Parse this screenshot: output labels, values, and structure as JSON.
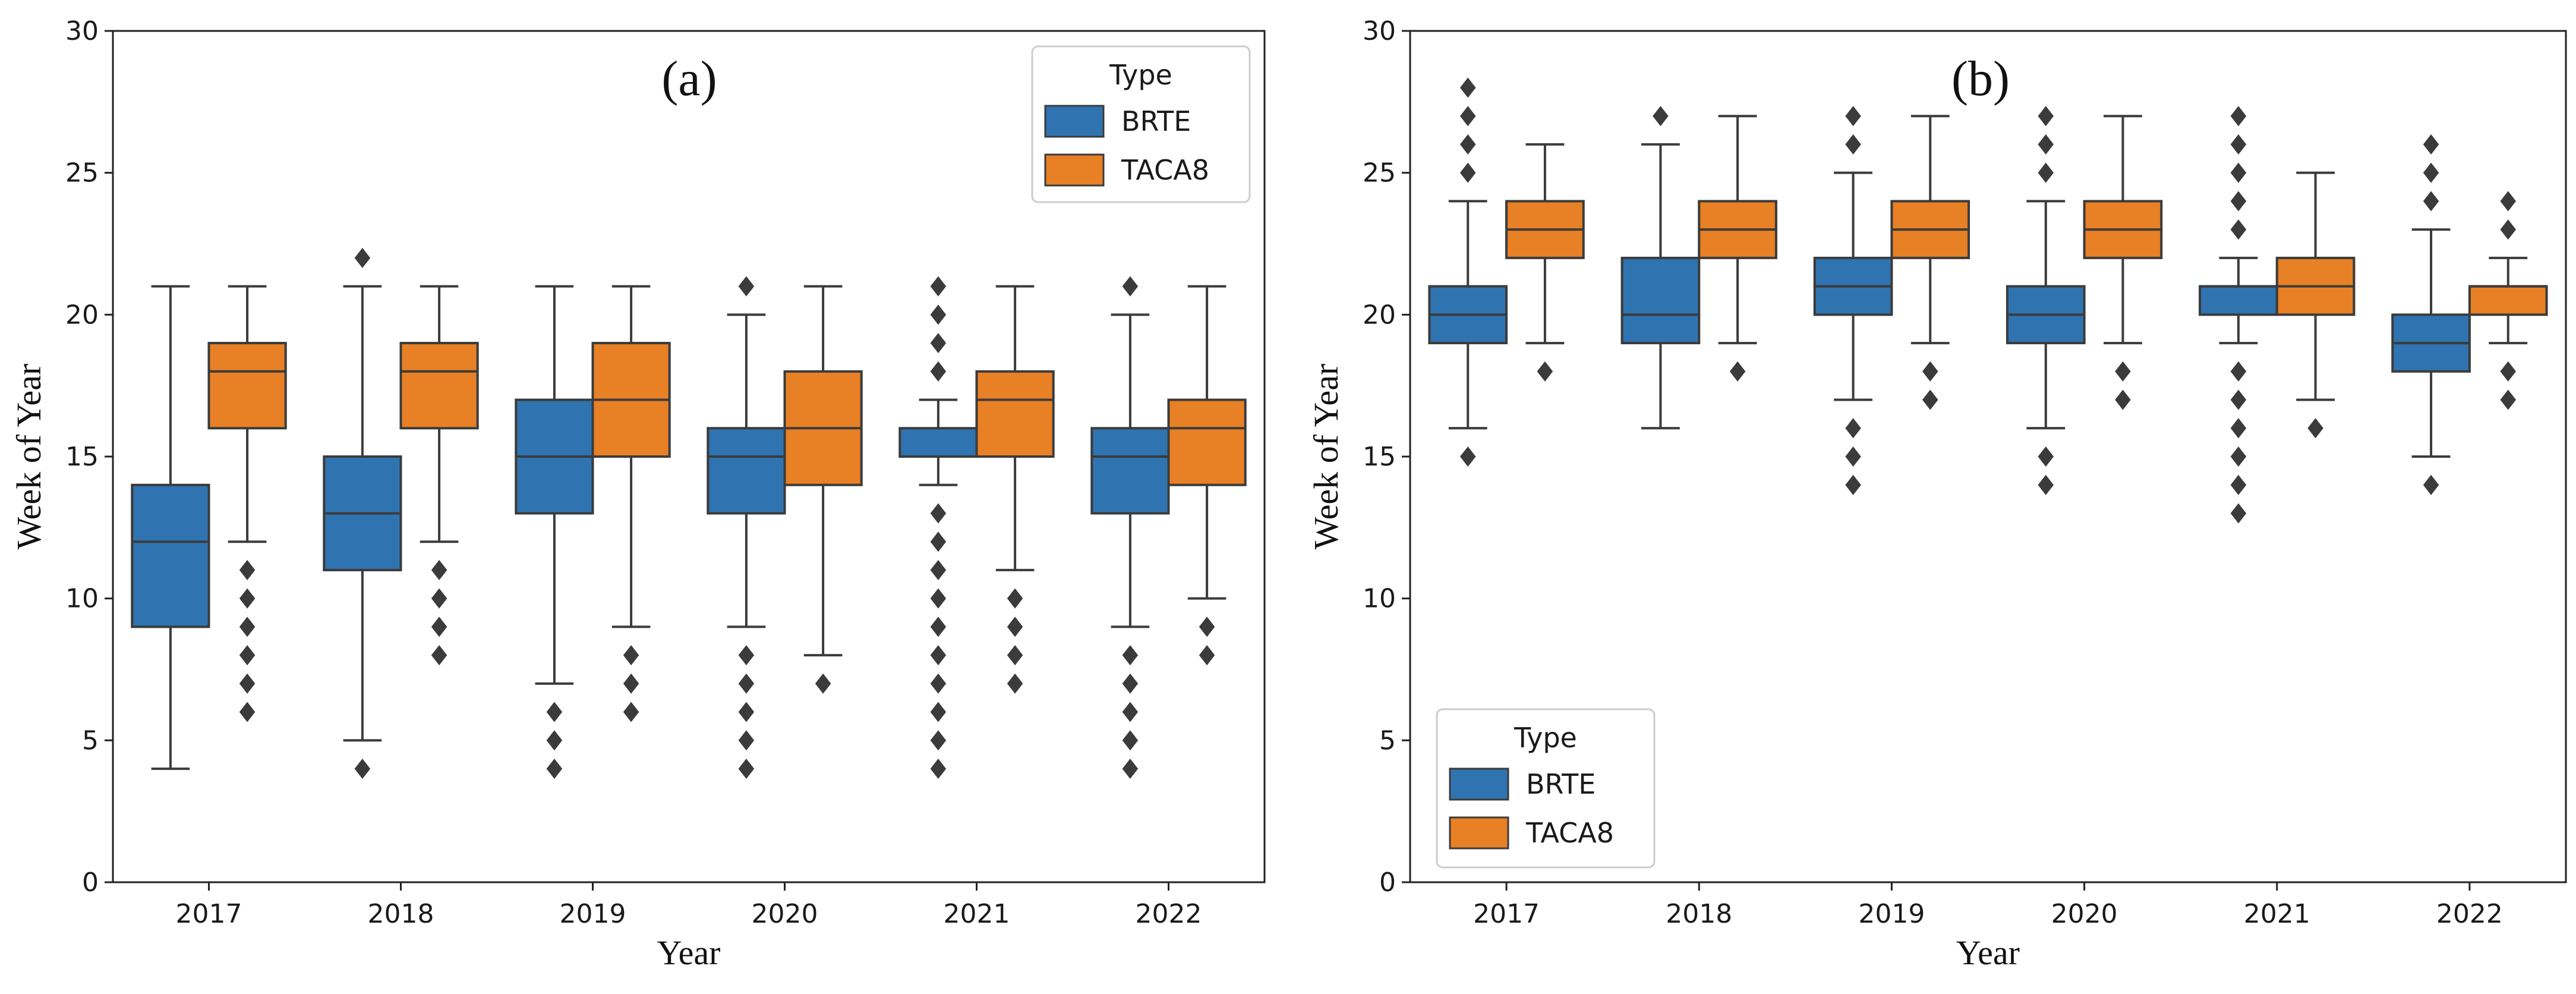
{
  "colors": {
    "brte": "#2f74b0",
    "taca8": "#e88025",
    "line": "#3b3b3b",
    "flier": "#3b3b3b",
    "frame": "#222222"
  },
  "chart_data": [
    {
      "type": "box",
      "panel_label": "(a)",
      "xlabel": "Year",
      "ylabel": "Week of Year",
      "ylim": [
        0,
        30
      ],
      "yticks": [
        "0",
        "5",
        "10",
        "15",
        "20",
        "25",
        "30"
      ],
      "categories": [
        "2017",
        "2018",
        "2019",
        "2020",
        "2021",
        "2022"
      ],
      "legend": {
        "title": "Type",
        "position": "top-right",
        "entries": [
          "BRTE",
          "TACA8"
        ]
      },
      "series": [
        {
          "name": "BRTE",
          "boxes": [
            {
              "q1": 9,
              "median": 12,
              "q3": 14,
              "whislo": 4,
              "whishi": 21,
              "fliers": []
            },
            {
              "q1": 11,
              "median": 13,
              "q3": 15,
              "whislo": 5,
              "whishi": 21,
              "fliers": [
                4,
                22
              ]
            },
            {
              "q1": 13,
              "median": 15,
              "q3": 17,
              "whislo": 7,
              "whishi": 21,
              "fliers": [
                4,
                5,
                6
              ]
            },
            {
              "q1": 13,
              "median": 15,
              "q3": 16,
              "whislo": 9,
              "whishi": 20,
              "fliers": [
                4,
                5,
                6,
                7,
                8,
                21
              ]
            },
            {
              "q1": 15,
              "median": 15,
              "q3": 16,
              "whislo": 14,
              "whishi": 17,
              "fliers": [
                4,
                5,
                6,
                7,
                8,
                9,
                10,
                11,
                12,
                13,
                18,
                19,
                20,
                21
              ]
            },
            {
              "q1": 13,
              "median": 15,
              "q3": 16,
              "whislo": 9,
              "whishi": 20,
              "fliers": [
                4,
                5,
                6,
                7,
                8,
                21
              ]
            }
          ]
        },
        {
          "name": "TACA8",
          "boxes": [
            {
              "q1": 16,
              "median": 18,
              "q3": 19,
              "whislo": 12,
              "whishi": 21,
              "fliers": [
                6,
                7,
                8,
                9,
                10,
                11
              ]
            },
            {
              "q1": 16,
              "median": 18,
              "q3": 19,
              "whislo": 12,
              "whishi": 21,
              "fliers": [
                8,
                9,
                10,
                11
              ]
            },
            {
              "q1": 15,
              "median": 17,
              "q3": 19,
              "whislo": 9,
              "whishi": 21,
              "fliers": [
                6,
                7,
                8
              ]
            },
            {
              "q1": 14,
              "median": 16,
              "q3": 18,
              "whislo": 8,
              "whishi": 21,
              "fliers": [
                7
              ]
            },
            {
              "q1": 15,
              "median": 17,
              "q3": 18,
              "whislo": 11,
              "whishi": 21,
              "fliers": [
                7,
                8,
                9,
                10
              ]
            },
            {
              "q1": 14,
              "median": 16,
              "q3": 17,
              "whislo": 10,
              "whishi": 21,
              "fliers": [
                8,
                9
              ]
            }
          ]
        }
      ]
    },
    {
      "type": "box",
      "panel_label": "(b)",
      "xlabel": "Year",
      "ylabel": "Week of Year",
      "ylim": [
        0,
        30
      ],
      "yticks": [
        "0",
        "5",
        "10",
        "15",
        "20",
        "25",
        "30"
      ],
      "categories": [
        "2017",
        "2018",
        "2019",
        "2020",
        "2021",
        "2022"
      ],
      "legend": {
        "title": "Type",
        "position": "bottom-left",
        "entries": [
          "BRTE",
          "TACA8"
        ]
      },
      "series": [
        {
          "name": "BRTE",
          "boxes": [
            {
              "q1": 19,
              "median": 20,
              "q3": 21,
              "whislo": 16,
              "whishi": 24,
              "fliers": [
                15,
                25,
                26,
                27,
                28
              ]
            },
            {
              "q1": 19,
              "median": 20,
              "q3": 22,
              "whislo": 16,
              "whishi": 26,
              "fliers": [
                27
              ]
            },
            {
              "q1": 20,
              "median": 21,
              "q3": 22,
              "whislo": 17,
              "whishi": 25,
              "fliers": [
                14,
                15,
                16,
                26,
                27
              ]
            },
            {
              "q1": 19,
              "median": 20,
              "q3": 21,
              "whislo": 16,
              "whishi": 24,
              "fliers": [
                14,
                15,
                25,
                26,
                27
              ]
            },
            {
              "q1": 20,
              "median": 21,
              "q3": 21,
              "whislo": 19,
              "whishi": 22,
              "fliers": [
                13,
                14,
                15,
                16,
                17,
                18,
                23,
                24,
                25,
                26,
                27
              ]
            },
            {
              "q1": 18,
              "median": 19,
              "q3": 20,
              "whislo": 15,
              "whishi": 23,
              "fliers": [
                14,
                24,
                25,
                26
              ]
            }
          ]
        },
        {
          "name": "TACA8",
          "boxes": [
            {
              "q1": 22,
              "median": 23,
              "q3": 24,
              "whislo": 19,
              "whishi": 26,
              "fliers": [
                18
              ]
            },
            {
              "q1": 22,
              "median": 23,
              "q3": 24,
              "whislo": 19,
              "whishi": 27,
              "fliers": [
                18
              ]
            },
            {
              "q1": 22,
              "median": 23,
              "q3": 24,
              "whislo": 19,
              "whishi": 27,
              "fliers": [
                17,
                18
              ]
            },
            {
              "q1": 22,
              "median": 23,
              "q3": 24,
              "whislo": 19,
              "whishi": 27,
              "fliers": [
                17,
                18
              ]
            },
            {
              "q1": 20,
              "median": 21,
              "q3": 22,
              "whislo": 17,
              "whishi": 25,
              "fliers": [
                16
              ]
            },
            {
              "q1": 20,
              "median": 21,
              "q3": 21,
              "whislo": 19,
              "whishi": 22,
              "fliers": [
                17,
                18,
                23,
                24
              ]
            }
          ]
        }
      ]
    }
  ]
}
